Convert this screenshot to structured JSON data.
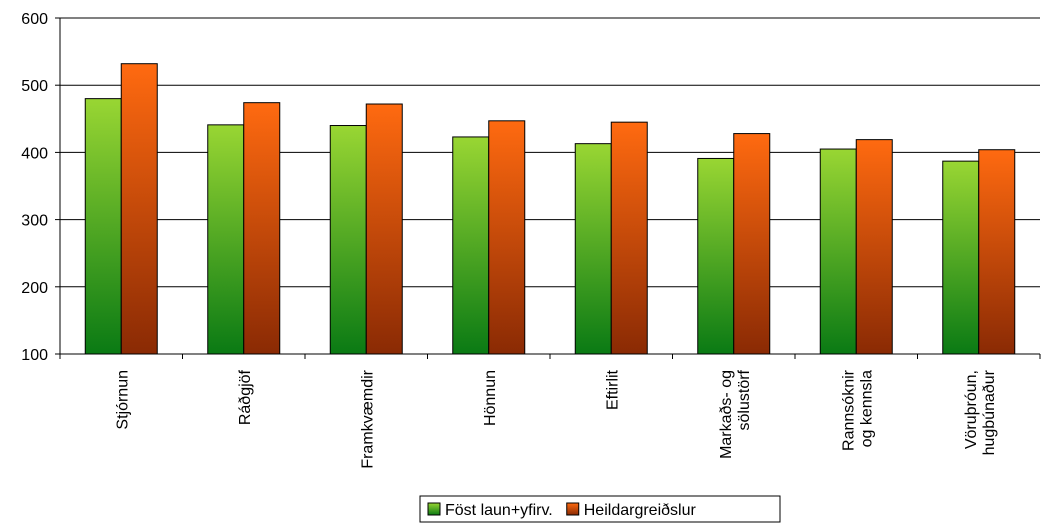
{
  "chart_data": {
    "type": "bar",
    "categories": [
      [
        "Stjórnun"
      ],
      [
        "Ráðgjöf"
      ],
      [
        "Framkvæmdir"
      ],
      [
        "Hönnun"
      ],
      [
        "Eftirlit"
      ],
      [
        "Markaðs- og",
        "sölustörf"
      ],
      [
        "Rannsóknir",
        "og kennsla"
      ],
      [
        "Vöruþróun,",
        "hugbúnaður"
      ]
    ],
    "series": [
      {
        "name": "Föst laun+yfirv.",
        "values": [
          480,
          441,
          440,
          423,
          413,
          391,
          405,
          387
        ],
        "color_top": "#99d633",
        "color_bottom": "#0a7a14"
      },
      {
        "name": "Heildargreiðslur",
        "values": [
          532,
          474,
          472,
          447,
          445,
          428,
          419,
          404
        ],
        "color_top": "#ff6a10",
        "color_bottom": "#8a2a04"
      }
    ],
    "ylim": [
      100,
      600
    ],
    "yticks": [
      100,
      200,
      300,
      400,
      500,
      600
    ],
    "grid": true,
    "legend": "bottom-center",
    "title": "",
    "xlabel": "",
    "ylabel": ""
  }
}
